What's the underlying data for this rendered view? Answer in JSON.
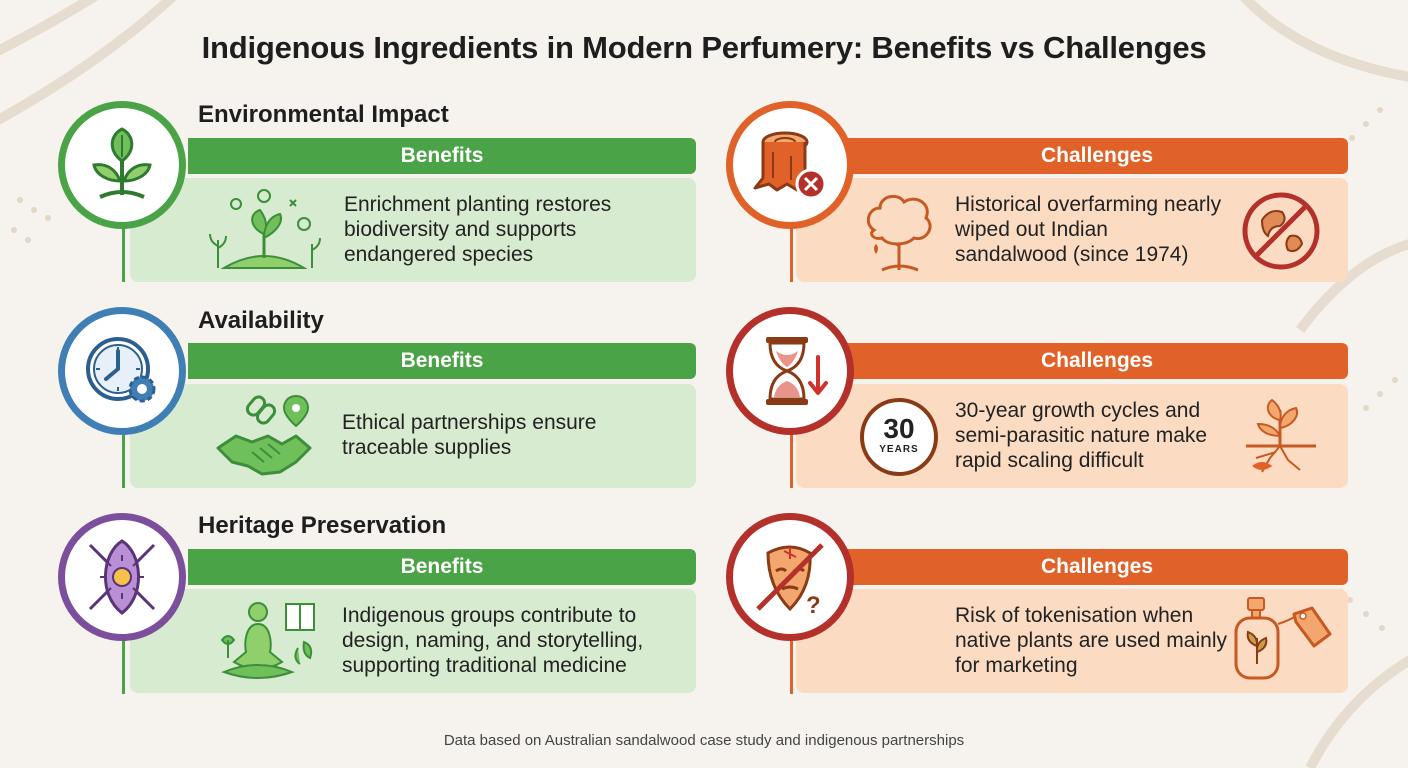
{
  "title": "Indigenous Ingredients in Modern Perfumery: Benefits vs Challenges",
  "sections": [
    {
      "title": "Environmental Impact",
      "benefits_label": "Benefits",
      "benefits_text": "Enrichment planting restores biodiversity and supports endangered species",
      "challenges_label": "Challenges",
      "challenges_text": "Historical overfarming nearly wiped out Indian sandalwood (since 1974)",
      "benefit_icon": "plant-sprout-icon",
      "challenge_icon": "tree-stump-icon"
    },
    {
      "title": "Availability",
      "benefits_label": "Benefits",
      "benefits_text": "Ethical partnerships ensure traceable supplies",
      "challenges_label": "Challenges",
      "challenges_text": "30-year growth cycles and semi-parasitic nature make rapid scaling difficult",
      "benefit_icon": "clock-gear-icon",
      "challenge_icon": "hourglass-icon",
      "years_badge_number": "30",
      "years_badge_label": "YEARS"
    },
    {
      "title": "Heritage Preservation",
      "benefits_label": "Benefits",
      "benefits_text": "Indigenous groups contribute to design, naming, and storytelling, supporting traditional medicine",
      "challenges_label": "Challenges",
      "challenges_text": "Risk of tokenisation when native plants are used mainly for marketing",
      "benefit_icon": "shield-spears-icon",
      "challenge_icon": "mask-prohibited-icon"
    }
  ],
  "footer": "Data based on Australian sandalwood case study and indigenous partnerships",
  "colors": {
    "green": "#4aa347",
    "green_light": "#d6ebcf",
    "orange": "#e06228",
    "orange_light": "#fbdcc2",
    "blue": "#3f7fb5",
    "purple": "#7c4f9c",
    "red": "#b4302a",
    "background": "#f6f3ee"
  }
}
